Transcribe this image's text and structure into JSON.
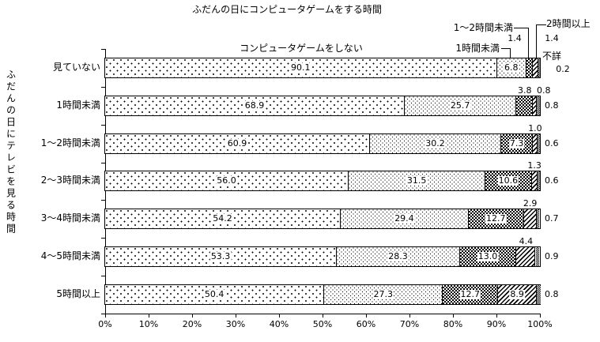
{
  "chart_data": {
    "type": "bar",
    "orientation": "horizontal-stacked",
    "title": "ふだんの日にコンピュータゲームをする時間",
    "y_axis_title": "ふだんの日にテレビを見る時間",
    "xlim": [
      0,
      100
    ],
    "grid": false,
    "x_ticks": [
      "0%",
      "10%",
      "20%",
      "30%",
      "40%",
      "50%",
      "60%",
      "70%",
      "80%",
      "90%",
      "100%"
    ],
    "categories": [
      "見ていない",
      "1時間未満",
      "1～2時間未満",
      "2～3時間未満",
      "3～4時間未満",
      "4～5時間未満",
      "5時間以上"
    ],
    "series": [
      {
        "name": "コンピュータゲームをしない",
        "values": [
          90.1,
          68.9,
          60.9,
          56.0,
          54.2,
          53.3,
          50.4
        ]
      },
      {
        "name": "1時間未満",
        "values": [
          6.8,
          25.7,
          30.2,
          31.5,
          29.4,
          28.3,
          27.3
        ]
      },
      {
        "name": "1～2時間未満",
        "values": [
          1.4,
          3.8,
          7.3,
          10.6,
          12.7,
          13.0,
          12.7
        ]
      },
      {
        "name": "2時間以上",
        "values": [
          1.4,
          0.8,
          1.0,
          1.3,
          2.9,
          4.4,
          8.9
        ]
      },
      {
        "name": "不詳",
        "values": [
          0.2,
          0.8,
          0.6,
          0.6,
          0.7,
          0.9,
          0.8
        ]
      }
    ]
  },
  "colors": {
    "ink": "#000000",
    "background": "#ffffff"
  }
}
